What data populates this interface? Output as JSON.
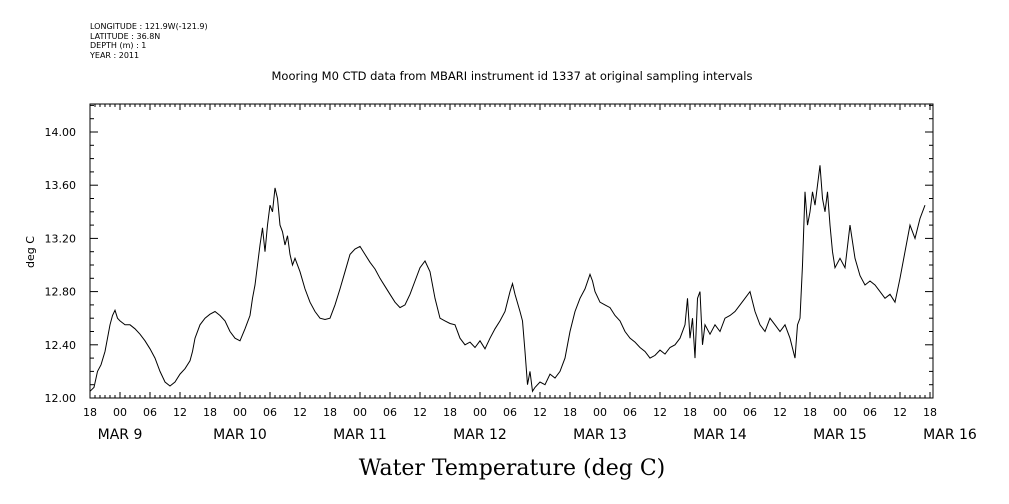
{
  "meta": {
    "longitude": "LONGITUDE : 121.9W(-121.9)",
    "latitude": "LATITUDE : 36.8N",
    "depth": "DEPTH (m) : 1",
    "year": "YEAR : 2011"
  },
  "chart_data": {
    "type": "line",
    "title": "Mooring M0 CTD data from MBARI instrument id 1337 at original sampling intervals",
    "xlabel": "Water Temperature (deg C)",
    "ylabel": "deg C",
    "xlim": [
      0,
      168
    ],
    "ylim": [
      12.0,
      14.2
    ],
    "yticks": [
      12.0,
      12.4,
      12.8,
      13.2,
      13.6,
      14.0
    ],
    "hour_ticks": [
      "18",
      "00",
      "06",
      "12",
      "18",
      "00",
      "06",
      "12",
      "18",
      "00",
      "06",
      "12",
      "18",
      "00",
      "06",
      "12",
      "18",
      "00",
      "06",
      "12",
      "18",
      "00",
      "06",
      "12",
      "18",
      "00",
      "06",
      "12",
      "18"
    ],
    "day_labels": [
      {
        "text": "MAR  9",
        "x": 6
      },
      {
        "text": "MAR 10",
        "x": 30
      },
      {
        "text": "MAR 11",
        "x": 54
      },
      {
        "text": "MAR 12",
        "x": 78
      },
      {
        "text": "MAR 13",
        "x": 102
      },
      {
        "text": "MAR 14",
        "x": 126
      },
      {
        "text": "MAR 15",
        "x": 150
      },
      {
        "text": "MAR 16",
        "x": 172
      }
    ],
    "grid": false,
    "series": [
      {
        "color": "#000000",
        "points": [
          [
            0.0,
            12.05
          ],
          [
            0.8,
            12.08
          ],
          [
            1.5,
            12.2
          ],
          [
            2.2,
            12.25
          ],
          [
            3.0,
            12.35
          ],
          [
            3.5,
            12.45
          ],
          [
            4.0,
            12.55
          ],
          [
            4.5,
            12.62
          ],
          [
            5.0,
            12.66
          ],
          [
            5.5,
            12.6
          ],
          [
            6.0,
            12.58
          ],
          [
            7.0,
            12.55
          ],
          [
            8.0,
            12.55
          ],
          [
            9.0,
            12.52
          ],
          [
            10.0,
            12.48
          ],
          [
            11.0,
            12.43
          ],
          [
            12.0,
            12.37
          ],
          [
            13.0,
            12.3
          ],
          [
            14.0,
            12.2
          ],
          [
            15.0,
            12.12
          ],
          [
            16.0,
            12.09
          ],
          [
            17.0,
            12.12
          ],
          [
            18.0,
            12.18
          ],
          [
            19.0,
            12.22
          ],
          [
            20.0,
            12.28
          ],
          [
            20.5,
            12.35
          ],
          [
            21.0,
            12.45
          ],
          [
            22.0,
            12.55
          ],
          [
            23.0,
            12.6
          ],
          [
            24.0,
            12.63
          ],
          [
            25.0,
            12.65
          ],
          [
            26.0,
            12.62
          ],
          [
            27.0,
            12.58
          ],
          [
            28.0,
            12.5
          ],
          [
            29.0,
            12.45
          ],
          [
            30.0,
            12.43
          ],
          [
            31.0,
            12.52
          ],
          [
            32.0,
            12.62
          ],
          [
            32.5,
            12.75
          ],
          [
            33.0,
            12.85
          ],
          [
            33.5,
            13.0
          ],
          [
            34.0,
            13.15
          ],
          [
            34.5,
            13.28
          ],
          [
            35.0,
            13.1
          ],
          [
            35.5,
            13.3
          ],
          [
            36.0,
            13.45
          ],
          [
            36.5,
            13.4
          ],
          [
            37.0,
            13.58
          ],
          [
            37.5,
            13.5
          ],
          [
            38.0,
            13.3
          ],
          [
            38.5,
            13.25
          ],
          [
            39.0,
            13.15
          ],
          [
            39.5,
            13.22
          ],
          [
            40.0,
            13.08
          ],
          [
            40.5,
            13.0
          ],
          [
            41.0,
            13.05
          ],
          [
            42.0,
            12.95
          ],
          [
            43.0,
            12.82
          ],
          [
            44.0,
            12.72
          ],
          [
            45.0,
            12.65
          ],
          [
            46.0,
            12.6
          ],
          [
            47.0,
            12.59
          ],
          [
            48.0,
            12.6
          ],
          [
            49.0,
            12.7
          ],
          [
            50.0,
            12.82
          ],
          [
            51.0,
            12.95
          ],
          [
            52.0,
            13.08
          ],
          [
            53.0,
            13.12
          ],
          [
            54.0,
            13.14
          ],
          [
            55.0,
            13.08
          ],
          [
            56.0,
            13.02
          ],
          [
            57.0,
            12.97
          ],
          [
            58.0,
            12.9
          ],
          [
            59.0,
            12.84
          ],
          [
            60.0,
            12.78
          ],
          [
            61.0,
            12.72
          ],
          [
            62.0,
            12.68
          ],
          [
            63.0,
            12.7
          ],
          [
            64.0,
            12.78
          ],
          [
            65.0,
            12.88
          ],
          [
            66.0,
            12.98
          ],
          [
            67.0,
            13.03
          ],
          [
            68.0,
            12.95
          ],
          [
            69.0,
            12.75
          ],
          [
            70.0,
            12.6
          ],
          [
            71.0,
            12.58
          ],
          [
            72.0,
            12.56
          ],
          [
            73.0,
            12.55
          ],
          [
            74.0,
            12.45
          ],
          [
            75.0,
            12.4
          ],
          [
            76.0,
            12.42
          ],
          [
            77.0,
            12.38
          ],
          [
            78.0,
            12.43
          ],
          [
            79.0,
            12.37
          ],
          [
            80.0,
            12.45
          ],
          [
            81.0,
            12.52
          ],
          [
            82.0,
            12.58
          ],
          [
            83.0,
            12.65
          ],
          [
            84.0,
            12.8
          ],
          [
            84.5,
            12.86
          ],
          [
            85.0,
            12.78
          ],
          [
            86.0,
            12.65
          ],
          [
            86.5,
            12.58
          ],
          [
            87.0,
            12.35
          ],
          [
            87.5,
            12.1
          ],
          [
            88.0,
            12.2
          ],
          [
            88.5,
            12.05
          ],
          [
            89.0,
            12.08
          ],
          [
            90.0,
            12.12
          ],
          [
            91.0,
            12.1
          ],
          [
            92.0,
            12.18
          ],
          [
            93.0,
            12.15
          ],
          [
            94.0,
            12.2
          ],
          [
            95.0,
            12.3
          ],
          [
            96.0,
            12.5
          ],
          [
            97.0,
            12.65
          ],
          [
            98.0,
            12.75
          ],
          [
            99.0,
            12.82
          ],
          [
            100.0,
            12.93
          ],
          [
            100.5,
            12.88
          ],
          [
            101.0,
            12.8
          ],
          [
            102.0,
            12.72
          ],
          [
            103.0,
            12.7
          ],
          [
            104.0,
            12.68
          ],
          [
            105.0,
            12.62
          ],
          [
            106.0,
            12.58
          ],
          [
            107.0,
            12.5
          ],
          [
            108.0,
            12.45
          ],
          [
            109.0,
            12.42
          ],
          [
            110.0,
            12.38
          ],
          [
            111.0,
            12.35
          ],
          [
            112.0,
            12.3
          ],
          [
            113.0,
            12.32
          ],
          [
            114.0,
            12.36
          ],
          [
            115.0,
            12.33
          ],
          [
            116.0,
            12.38
          ],
          [
            117.0,
            12.4
          ],
          [
            118.0,
            12.45
          ],
          [
            119.0,
            12.55
          ],
          [
            119.5,
            12.75
          ],
          [
            120.0,
            12.45
          ],
          [
            120.5,
            12.6
          ],
          [
            121.0,
            12.3
          ],
          [
            121.5,
            12.75
          ],
          [
            122.0,
            12.8
          ],
          [
            122.5,
            12.4
          ],
          [
            123.0,
            12.55
          ],
          [
            124.0,
            12.48
          ],
          [
            125.0,
            12.55
          ],
          [
            126.0,
            12.5
          ],
          [
            127.0,
            12.6
          ],
          [
            128.0,
            12.62
          ],
          [
            129.0,
            12.65
          ],
          [
            130.0,
            12.7
          ],
          [
            131.0,
            12.75
          ],
          [
            132.0,
            12.8
          ],
          [
            133.0,
            12.65
          ],
          [
            134.0,
            12.55
          ],
          [
            135.0,
            12.5
          ],
          [
            136.0,
            12.6
          ],
          [
            137.0,
            12.55
          ],
          [
            138.0,
            12.5
          ],
          [
            139.0,
            12.55
          ],
          [
            140.0,
            12.45
          ],
          [
            141.0,
            12.3
          ],
          [
            141.5,
            12.55
          ],
          [
            142.0,
            12.6
          ],
          [
            142.5,
            13.0
          ],
          [
            143.0,
            13.55
          ],
          [
            143.5,
            13.3
          ],
          [
            144.0,
            13.4
          ],
          [
            144.5,
            13.55
          ],
          [
            145.0,
            13.45
          ],
          [
            145.5,
            13.6
          ],
          [
            146.0,
            13.75
          ],
          [
            146.5,
            13.5
          ],
          [
            147.0,
            13.4
          ],
          [
            147.5,
            13.55
          ],
          [
            148.0,
            13.3
          ],
          [
            148.5,
            13.1
          ],
          [
            149.0,
            12.98
          ],
          [
            150.0,
            13.05
          ],
          [
            151.0,
            12.98
          ],
          [
            152.0,
            13.3
          ],
          [
            153.0,
            13.05
          ],
          [
            154.0,
            12.92
          ],
          [
            155.0,
            12.85
          ],
          [
            156.0,
            12.88
          ],
          [
            157.0,
            12.85
          ],
          [
            158.0,
            12.8
          ],
          [
            159.0,
            12.75
          ],
          [
            160.0,
            12.78
          ],
          [
            161.0,
            12.72
          ],
          [
            162.0,
            12.9
          ],
          [
            163.0,
            13.1
          ],
          [
            164.0,
            13.3
          ],
          [
            165.0,
            13.2
          ],
          [
            166.0,
            13.35
          ],
          [
            167.0,
            13.45
          ]
        ]
      }
    ]
  }
}
